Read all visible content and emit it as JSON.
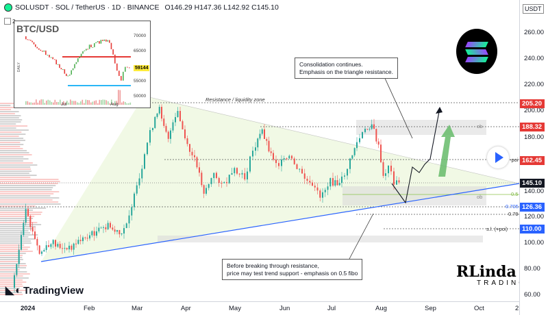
{
  "header": {
    "symbol_text": "SOLUSDT · SOL / TetherUS · 1D · BINANCE",
    "ohlc": "O146.29 H147.36 L142.92 C145.10",
    "sub_badge": "2"
  },
  "right_axis": {
    "currency": "USDT",
    "ticks": [
      "260.00",
      "240.00",
      "220.00",
      "200.00",
      "180.00",
      "140.00",
      "120.00",
      "100.00",
      "80.00",
      "60.00"
    ],
    "badges": [
      {
        "label": "205.20",
        "color": "#e53935"
      },
      {
        "label": "188.32",
        "color": "#e53935"
      },
      {
        "label": "162.45",
        "color": "#e53935"
      },
      {
        "label": "145.10",
        "color": "#131722"
      },
      {
        "label": "126.36",
        "color": "#2962ff"
      },
      {
        "label": "110.00",
        "color": "#2962ff"
      }
    ]
  },
  "bottom_axis": {
    "ticks": [
      {
        "label": "2024",
        "bold": true
      },
      {
        "label": "Feb",
        "bold": false
      },
      {
        "label": "Mar",
        "bold": false
      },
      {
        "label": "Apr",
        "bold": false
      },
      {
        "label": "May",
        "bold": false
      },
      {
        "label": "Jun",
        "bold": false
      },
      {
        "label": "Jul",
        "bold": false
      },
      {
        "label": "Aug",
        "bold": false
      },
      {
        "label": "Sep",
        "bold": false
      },
      {
        "label": "Oct",
        "bold": false
      },
      {
        "label": "2",
        "bold": false
      }
    ]
  },
  "inset": {
    "title": "BTC/USD",
    "side_label": "DAILY",
    "ticks": [
      "70000",
      "65000",
      "59144",
      "55000",
      "50000"
    ],
    "current_price": "59144",
    "months": [
      "Jul",
      "Aug"
    ]
  },
  "notes": {
    "top": [
      "Consolidation continues.",
      "Emphasis on the triangle resistance."
    ],
    "bottom": [
      "Before breaking through resistance,",
      "price may test trend support - emphasis on 0.5 fibo"
    ]
  },
  "chart_labels": {
    "resistance": "Resistance / liquidity zone",
    "poi": "-poi",
    "ob_upper": "ob",
    "ob_lower": "ob",
    "fib_05": "0.5",
    "fib_0705": "0.705",
    "fib_079": "0.79",
    "sl": "s.l. (+poi)"
  },
  "branding": {
    "tradingview": "TradingView",
    "linda_big": "RLinda",
    "linda_small": "TRADING"
  },
  "colors": {
    "up": "#26a69a",
    "down": "#ef5350",
    "trend": "#2962ff",
    "projection": "#4caf50"
  }
}
